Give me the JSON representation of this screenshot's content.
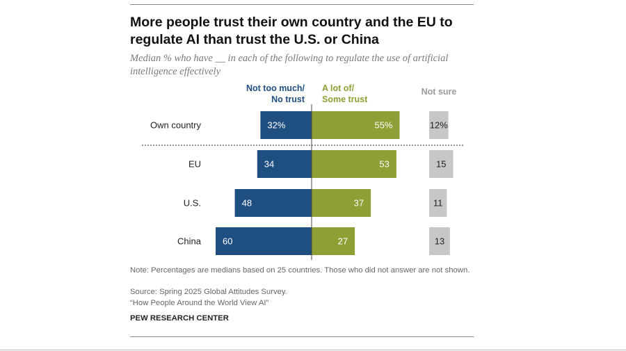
{
  "title": "More people trust their own country and the EU to regulate AI than trust the U.S. or China",
  "subtitle": "Median % who have __ in each of the following to regulate the use of artificial intelligence effectively",
  "colors": {
    "no_trust": "#1f4e80",
    "trust": "#8f9e35",
    "not_sure": "#c7c7c7",
    "text_dark": "#222222"
  },
  "chart_data": {
    "type": "bar",
    "orientation": "horizontal-diverging",
    "categories": [
      "Own country",
      "EU",
      "U.S.",
      "China"
    ],
    "series": [
      {
        "name": "Not too much/\nNo trust",
        "values": [
          32,
          34,
          48,
          60
        ],
        "labels": [
          "32%",
          "34",
          "48",
          "60"
        ]
      },
      {
        "name": "A lot of/\nSome trust",
        "values": [
          55,
          53,
          37,
          27
        ],
        "labels": [
          "55%",
          "53",
          "37",
          "27"
        ]
      },
      {
        "name": "Not sure",
        "values": [
          12,
          15,
          11,
          13
        ],
        "labels": [
          "12%",
          "15",
          "11",
          "13"
        ]
      }
    ],
    "legend_position": "top"
  },
  "notes": {
    "note": "Note: Percentages are medians based on 25 countries. Those who did not answer are not shown.",
    "source": "Source: Spring 2025 Global Attitudes Survey.",
    "report": "“How People Around the World View AI”",
    "brand": "PEW RESEARCH CENTER"
  }
}
